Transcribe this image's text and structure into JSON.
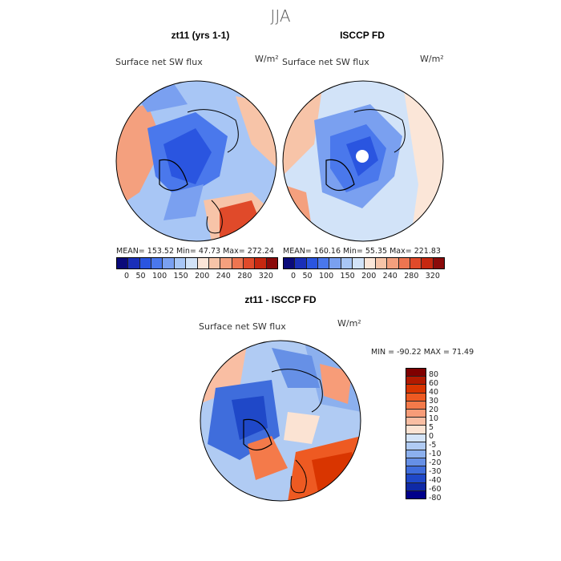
{
  "season": "JJA",
  "panels": [
    {
      "title": "zt11 (yrs 1-1)",
      "variable": "Surface net SW flux",
      "units": "W/m²",
      "stats": "MEAN= 153.52   Min=  47.73   Max= 272.24"
    },
    {
      "title": "ISCCP FD",
      "variable": "Surface net SW flux",
      "units": "W/m²",
      "stats": "MEAN= 160.16   Min=  55.35   Max= 221.83"
    },
    {
      "title": "zt11 - ISCCP FD",
      "variable": "Surface net SW flux",
      "units": "W/m²",
      "stats": "MIN = -90.22  MAX =  71.49"
    }
  ],
  "colorbar_top": {
    "labels": [
      "0",
      "50",
      "100",
      "150",
      "200",
      "240",
      "280",
      "320"
    ],
    "colors": [
      "#0a0a7a",
      "#1a2fb8",
      "#2a55e0",
      "#4a78ec",
      "#7aa0f0",
      "#a8c6f5",
      "#d2e3f8",
      "#fbe6d8",
      "#f7c4a8",
      "#f4a07e",
      "#ee7550",
      "#e04a2a",
      "#c62810",
      "#8a0a0a"
    ]
  },
  "colorbar_diff": {
    "labels": [
      "80",
      "60",
      "40",
      "30",
      "20",
      "10",
      "5",
      "0",
      "-5",
      "-10",
      "-20",
      "-30",
      "-40",
      "-60",
      "-80"
    ],
    "colors": [
      "#7f0000",
      "#b21a00",
      "#d93500",
      "#ee5a22",
      "#f47a4a",
      "#f79c78",
      "#f9bea3",
      "#fbe3d3",
      "#d4e4f8",
      "#b0cbf3",
      "#8cb0ee",
      "#6690e6",
      "#3f6ddc",
      "#1f48c8",
      "#0f2aa6",
      "#00008a"
    ]
  }
}
